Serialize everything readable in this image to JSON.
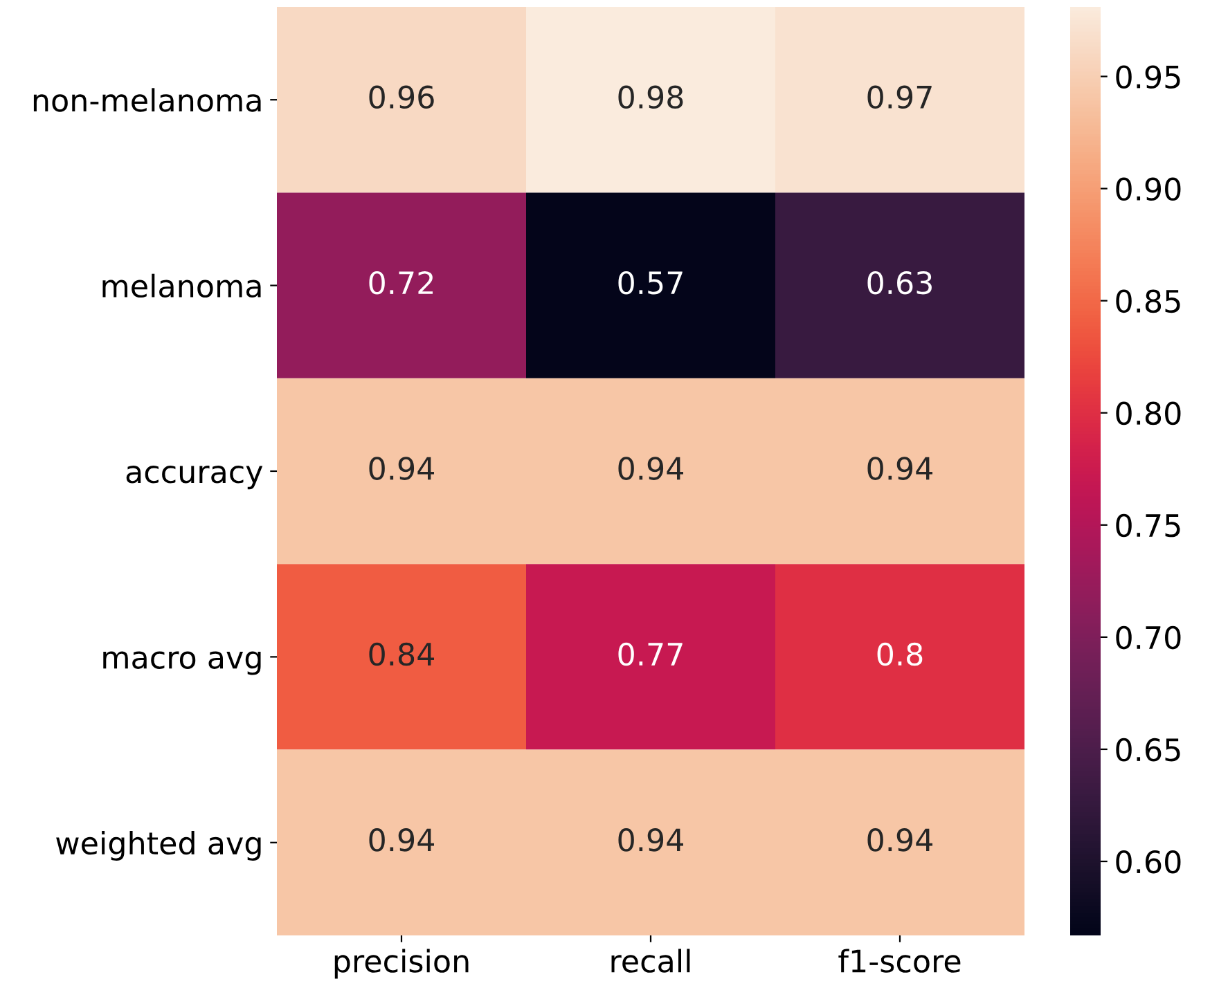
{
  "chart_data": {
    "type": "heatmap",
    "categories": [
      "precision",
      "recall",
      "f1-score"
    ],
    "y_categories": [
      "non-melanoma",
      "melanoma",
      "accuracy",
      "macro avg",
      "weighted avg"
    ],
    "cells": [
      [
        0.96,
        0.98,
        0.97
      ],
      [
        0.72,
        0.57,
        0.63
      ],
      [
        0.94,
        0.94,
        0.94
      ],
      [
        0.84,
        0.77,
        0.8
      ],
      [
        0.94,
        0.94,
        0.94
      ]
    ],
    "data_labels": true,
    "clim": [
      0.567,
      0.981
    ],
    "cticks": [
      {
        "value": 0.6,
        "label": "0.60"
      },
      0.65,
      {
        "value": 0.7,
        "label": "0.70"
      },
      0.75,
      {
        "value": 0.8,
        "label": "0.80"
      },
      0.85,
      {
        "value": 0.9,
        "label": "0.90"
      },
      0.95
    ]
  }
}
